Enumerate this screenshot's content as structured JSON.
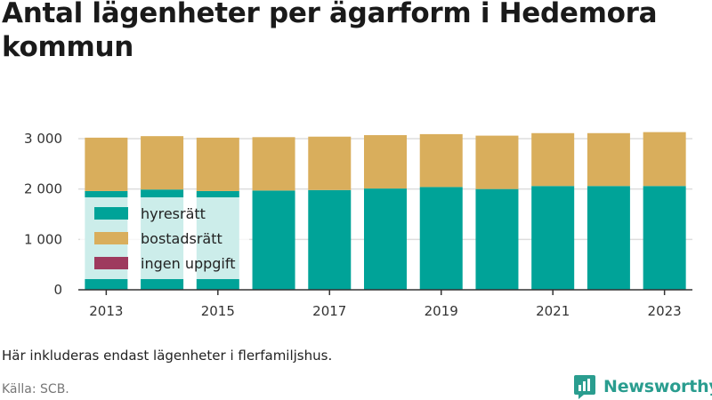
{
  "title": "Antal lägenheter per ägarform i Hedemora kommun",
  "note": "Här inkluderas endast lägenheter i flerfamiljshus.",
  "source": "Källa: SCB.",
  "logo": {
    "text": "Newsworthy",
    "icon": "newsworthy-logo-icon",
    "color": "#2a9d8f"
  },
  "chart_data": {
    "type": "bar",
    "stacked": true,
    "categories": [
      "2013",
      "2014",
      "2015",
      "2016",
      "2017",
      "2018",
      "2019",
      "2020",
      "2021",
      "2022",
      "2023"
    ],
    "x_tick_labels": [
      "2013",
      "2015",
      "2017",
      "2019",
      "2021",
      "2023"
    ],
    "series": [
      {
        "name": "hyresrätt",
        "color": "#00a398",
        "values": [
          1960,
          1990,
          1960,
          1970,
          1980,
          2010,
          2040,
          2000,
          2060,
          2060,
          2060
        ]
      },
      {
        "name": "bostadsrätt",
        "color": "#d9ae5c",
        "values": [
          1060,
          1060,
          1060,
          1060,
          1060,
          1060,
          1050,
          1060,
          1050,
          1050,
          1070
        ]
      },
      {
        "name": "ingen uppgift",
        "color": "#9e3a5e",
        "values": [
          0,
          0,
          0,
          0,
          0,
          0,
          0,
          0,
          0,
          0,
          0
        ]
      }
    ],
    "y_ticks": [
      0,
      1000,
      2000,
      3000
    ],
    "y_tick_labels": [
      "0",
      "1 000",
      "2 000",
      "3 000"
    ],
    "ylim": [
      0,
      3300
    ],
    "grid": true,
    "legend_position": "bottom-left"
  }
}
